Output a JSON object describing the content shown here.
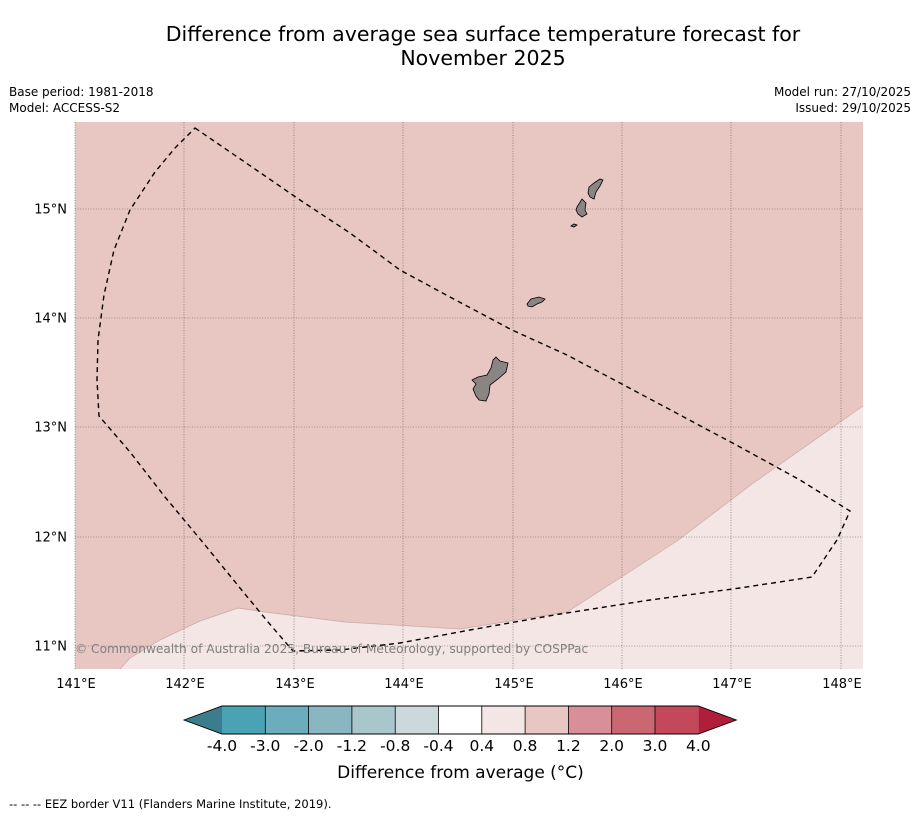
{
  "title": {
    "line1": "Difference from average sea surface temperature forecast for",
    "line2": "November 2025"
  },
  "meta": {
    "base_period": "Base period: 1981-2018",
    "model": "Model: ACCESS-S2",
    "model_run": "Model run: 27/10/2025",
    "issued": "Issued: 29/10/2025"
  },
  "map": {
    "latitude_labels": [
      "15°N",
      "14°N",
      "13°N",
      "12°N",
      "11°N"
    ],
    "longitude_labels": [
      "141°E",
      "142°E",
      "143°E",
      "144°E",
      "145°E",
      "146°E",
      "147°E",
      "148°E"
    ],
    "attribution": "© Commonwealth of Australia 2025, Bureau of Meteorology, supported by COSPPac",
    "anomaly_region_north": "0.8 to 1.2",
    "anomaly_region_south": "0.4 to 0.8",
    "colors": {
      "region_north": "#e8c7c2",
      "region_south": "#f4e6e4",
      "land": "#8a8483",
      "eez_border": "#000000"
    }
  },
  "colorbar": {
    "title": "Difference from average (°C)",
    "tick_labels": [
      "-4.0",
      "-3.0",
      "-2.0",
      "-1.2",
      "-0.8",
      "-0.4",
      "0.4",
      "0.8",
      "1.2",
      "2.0",
      "3.0",
      "4.0"
    ],
    "colors": [
      "#3b7d8c",
      "#4aa3b4",
      "#6badbd",
      "#8ab6c2",
      "#a8c7cc",
      "#cbd9dc",
      "#ffffff",
      "#f4e6e4",
      "#e8c7c2",
      "#d98f97",
      "#cb6773",
      "#c2485a",
      "#b01e3a"
    ]
  },
  "footnote": "-- -- -- EEZ border V11 (Flanders Marine Institute, 2019)."
}
